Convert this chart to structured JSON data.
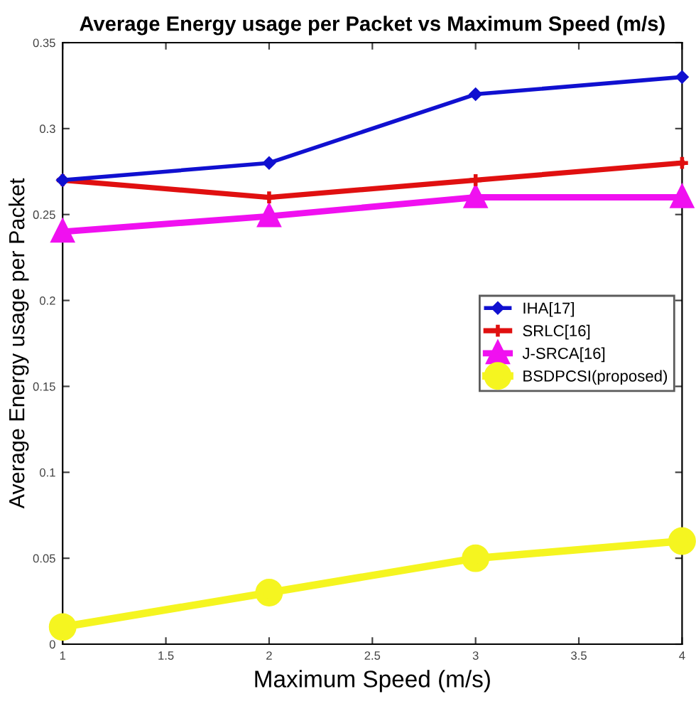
{
  "chart_data": {
    "type": "line",
    "title": "Average Energy usage per Packet vs Maximum Speed (m/s)",
    "xlabel": "Maximum Speed (m/s)",
    "ylabel": "Average Energy usage per Packet",
    "x": [
      1,
      2,
      3,
      4
    ],
    "series": [
      {
        "name": "IHA[17]",
        "color": "#1010d0",
        "marker": "diamond",
        "values": [
          0.27,
          0.28,
          0.32,
          0.33
        ]
      },
      {
        "name": "SRLC[16]",
        "color": "#e01010",
        "marker": "cross",
        "values": [
          0.27,
          0.26,
          0.27,
          0.28
        ]
      },
      {
        "name": "J-SRCA[16]",
        "color": "#f010f0",
        "marker": "triangle",
        "values": [
          0.24,
          0.249,
          0.26,
          0.26
        ]
      },
      {
        "name": "BSDPCSI(proposed)",
        "color": "#f5f520",
        "marker": "circle",
        "values": [
          0.01,
          0.03,
          0.05,
          0.06
        ]
      }
    ],
    "xlim": [
      1,
      4
    ],
    "xticks": [
      1,
      1.5,
      2,
      2.5,
      3,
      3.5,
      4
    ],
    "ylim": [
      0,
      0.35
    ],
    "yticks": [
      0,
      0.05,
      0.1,
      0.15,
      0.2,
      0.25,
      0.3,
      0.35
    ],
    "grid": false,
    "legend": "right",
    "line_style": "solid"
  }
}
